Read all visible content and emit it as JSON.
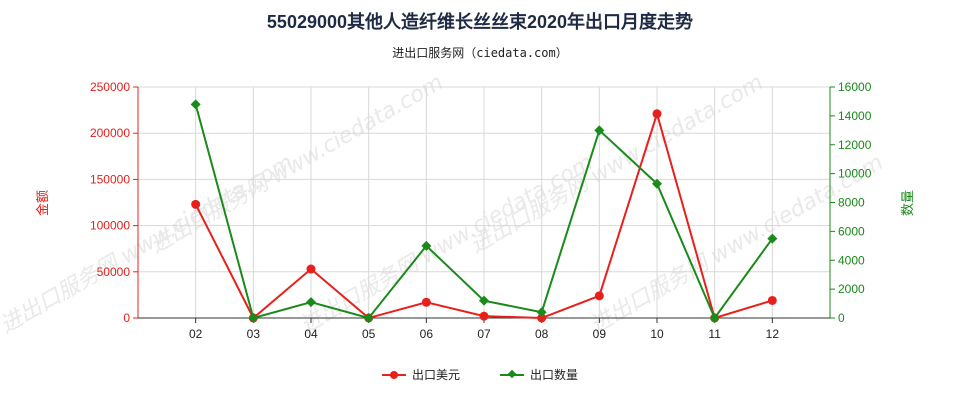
{
  "title": "55029000其他人造纤维长丝丝束2020年出口月度走势",
  "subtitle": "进出口服务网（ciedata.com）",
  "watermark": "进出口服务网 www.ciedata.com",
  "colors": {
    "usd": "#e8201c",
    "qty": "#1a8a1a",
    "grid": "#d8d8d8",
    "axis": "#333333"
  },
  "legend": {
    "usd_label": "出口美元",
    "qty_label": "出口数量"
  },
  "chart_data": {
    "type": "line",
    "categories": [
      "02",
      "03",
      "04",
      "05",
      "06",
      "07",
      "08",
      "09",
      "10",
      "11",
      "12"
    ],
    "y_left": {
      "label": "金额",
      "ticks": [
        "0",
        "50000",
        "100000",
        "150000",
        "200000",
        "250000"
      ],
      "ylim": [
        0,
        250000
      ]
    },
    "y_right": {
      "label": "数量",
      "ticks": [
        "0",
        "2000",
        "4000",
        "6000",
        "8000",
        "10000",
        "12000",
        "14000",
        "16000"
      ],
      "ylim": [
        0,
        16000
      ]
    },
    "series": [
      {
        "name": "出口美元",
        "axis": "left",
        "marker": "circle",
        "values": [
          123000,
          0,
          53000,
          0,
          17000,
          2000,
          0,
          24000,
          221000,
          0,
          19000
        ]
      },
      {
        "name": "出口数量",
        "axis": "right",
        "marker": "diamond",
        "values": [
          14800,
          0,
          1100,
          0,
          5000,
          1200,
          400,
          13000,
          9300,
          0,
          5500
        ]
      }
    ]
  }
}
